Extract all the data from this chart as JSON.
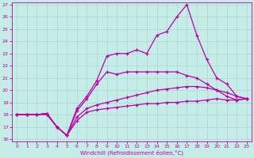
{
  "xlabel": "Windchill (Refroidissement éolien,°C)",
  "xlim_min": -0.5,
  "xlim_max": 23.5,
  "ylim_min": 15.8,
  "ylim_max": 27.2,
  "xticks": [
    0,
    1,
    2,
    3,
    4,
    5,
    6,
    7,
    8,
    9,
    10,
    11,
    12,
    13,
    14,
    15,
    16,
    17,
    18,
    19,
    20,
    21,
    22,
    23
  ],
  "yticks": [
    16,
    17,
    18,
    19,
    20,
    21,
    22,
    23,
    24,
    25,
    26,
    27
  ],
  "bg_color": "#c5ece6",
  "line_color": "#bb00aa",
  "grid_color": "#a8d8d0",
  "line1": [
    18.0,
    18.0,
    18.0,
    18.1,
    17.0,
    16.3,
    17.5,
    18.2,
    18.4,
    18.5,
    18.6,
    18.7,
    18.8,
    18.9,
    18.9,
    19.0,
    19.0,
    19.1,
    19.1,
    19.2,
    19.3,
    19.2,
    19.2,
    19.3
  ],
  "line2": [
    18.0,
    18.0,
    18.0,
    18.1,
    17.0,
    16.3,
    17.8,
    18.5,
    18.8,
    19.0,
    19.2,
    19.4,
    19.6,
    19.8,
    20.0,
    20.1,
    20.2,
    20.3,
    20.3,
    20.2,
    20.0,
    19.8,
    19.5,
    19.3
  ],
  "line3": [
    18.0,
    18.0,
    18.0,
    18.1,
    17.0,
    16.3,
    18.3,
    19.3,
    20.5,
    21.5,
    21.3,
    21.5,
    21.5,
    21.5,
    21.5,
    21.5,
    21.5,
    21.2,
    21.0,
    20.5,
    20.0,
    19.5,
    19.2,
    19.3
  ],
  "line4": [
    18.0,
    18.0,
    18.0,
    18.0,
    17.0,
    16.3,
    18.5,
    19.5,
    20.8,
    22.8,
    23.0,
    23.0,
    23.3,
    23.0,
    24.5,
    24.8,
    26.0,
    27.0,
    24.5,
    22.5,
    21.0,
    20.5,
    19.5,
    19.3
  ]
}
